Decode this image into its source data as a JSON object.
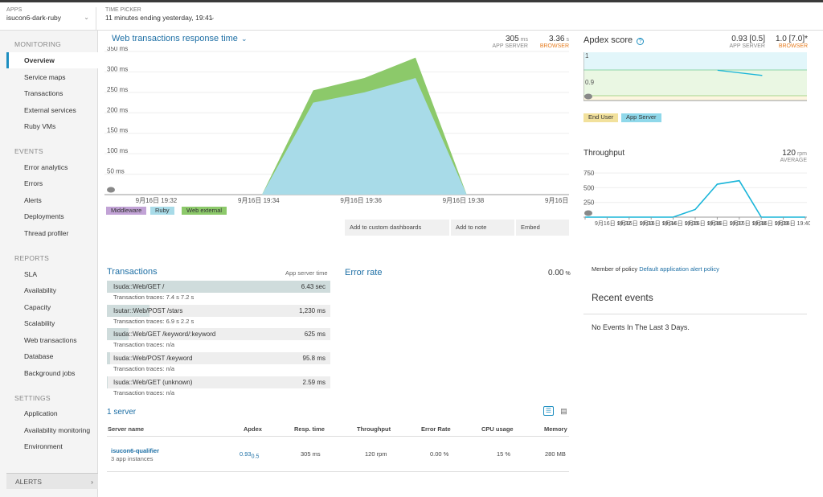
{
  "apps": {
    "label": "APPS",
    "value": "isucon6-dark-ruby"
  },
  "time_picker": {
    "label": "TIME PICKER",
    "value": "11 minutes ending yesterday, 19:41"
  },
  "sidebar": {
    "monitoring": "MONITORING",
    "monitoring_items": [
      "Overview",
      "Service maps",
      "Transactions",
      "External services",
      "Ruby VMs"
    ],
    "events": "EVENTS",
    "events_items": [
      "Error analytics",
      "Errors",
      "Alerts",
      "Deployments",
      "Thread profiler"
    ],
    "reports": "REPORTS",
    "reports_items": [
      "SLA",
      "Availability",
      "Capacity",
      "Scalability",
      "Web transactions",
      "Database",
      "Background jobs"
    ],
    "settings": "SETTINGS",
    "settings_items": [
      "Application",
      "Availability monitoring",
      "Environment"
    ],
    "alerts": "ALERTS"
  },
  "web_tx": {
    "title": "Web transactions response time",
    "app_server_value": "305",
    "app_server_unit": "ms",
    "app_server_label": "APP SERVER",
    "browser_value": "3.36",
    "browser_unit": "s",
    "browser_label": "BROWSER",
    "buttons": [
      "Add to custom dashboards",
      "Add to note",
      "Embed"
    ],
    "legend": [
      "Middleware",
      "Ruby",
      "Web external"
    ]
  },
  "apdex": {
    "title": "Apdex score",
    "app_server_value": "0.93 [0.5]",
    "app_server_label": "APP SERVER",
    "browser_value": "1.0 [7.0]*",
    "browser_label": "BROWSER",
    "legend": [
      "End User",
      "App Server"
    ]
  },
  "throughput": {
    "title": "Throughput",
    "value": "120",
    "unit": "rpm",
    "label": "AVERAGE"
  },
  "transactions": {
    "title": "Transactions",
    "header": "App server time",
    "trace_label": "Transaction traces:",
    "rows": [
      {
        "name": "Isuda::Web/GET /",
        "value": "6.43 sec",
        "traces": "7.4 s   7.2 s"
      },
      {
        "name": "Isutar::Web/POST /stars",
        "value": "1,230 ms",
        "traces": "6.9 s   2.2 s"
      },
      {
        "name": "Isuda::Web/GET /keyword/:keyword",
        "value": "625 ms",
        "traces": "n/a"
      },
      {
        "name": "Isuda::Web/POST /keyword",
        "value": "95.8 ms",
        "traces": "n/a"
      },
      {
        "name": "Isuda::Web/GET (unknown)",
        "value": "2.59 ms",
        "traces": "n/a"
      }
    ]
  },
  "error_rate": {
    "title": "Error rate",
    "value": "0.00",
    "unit": "%"
  },
  "policy": {
    "prefix": "Member of policy",
    "link": "Default application alert policy"
  },
  "recent_events": {
    "title": "Recent events",
    "empty": "No Events In The Last 3 Days."
  },
  "servers": {
    "title": "1 server",
    "headers": [
      "Server name",
      "Apdex",
      "Resp. time",
      "Throughput",
      "Error Rate",
      "CPU usage",
      "Memory"
    ],
    "row": {
      "name": "isucon6-qualifier",
      "instances": "3 app instances",
      "apdex": "0.93",
      "apdex_t": "0.5",
      "resp": "305 ms",
      "throughput": "120 rpm",
      "error": "0.00 %",
      "cpu": "15 %",
      "memory": "280 MB"
    }
  },
  "chart_data": [
    {
      "type": "area",
      "title": "Web transactions response time",
      "x": [
        "9月16日 19:31",
        "9月16日 19:32",
        "9月16日 19:33",
        "9月16日 19:34",
        "9月16日 19:35",
        "9月16日 19:36",
        "9月16日 19:37",
        "9月16日 19:38",
        "9月16日 19:39",
        "9月16日 19:40"
      ],
      "x_tick_labels": [
        "9月16日 19:32",
        "9月16日 19:34",
        "9月16日 19:36",
        "9月16日 19:38",
        "9月16日 19:40"
      ],
      "y_tick_labels": [
        "50 ms",
        "100 ms",
        "150 ms",
        "200 ms",
        "250 ms",
        "300 ms",
        "350 ms"
      ],
      "ylim": [
        0,
        350
      ],
      "series": [
        {
          "name": "Ruby",
          "color": "#a8dbe8",
          "values": [
            0,
            0,
            0,
            0,
            225,
            250,
            285,
            0,
            0,
            0
          ]
        },
        {
          "name": "Web external",
          "color": "#8cc96a",
          "values": [
            0,
            0,
            0,
            0,
            30,
            35,
            50,
            0,
            0,
            0
          ]
        },
        {
          "name": "Middleware",
          "color": "#c2a3d6",
          "values": [
            0,
            0,
            0,
            0,
            0,
            0,
            0,
            0,
            0,
            0
          ]
        }
      ]
    },
    {
      "type": "line",
      "title": "Apdex score",
      "y_tick_labels": [
        "1",
        "0.9"
      ],
      "series": [
        {
          "name": "App Server",
          "color": "#1ab5d9",
          "points": [
            [
              0.6,
              0.93
            ],
            [
              0.8,
              0.91
            ]
          ]
        }
      ]
    },
    {
      "type": "line",
      "title": "Throughput",
      "x_tick_labels": [
        "9月16日 19:32",
        "9月16日 19:33",
        "9月16日 19:34",
        "9月16日 19:35",
        "9月16日 19:36",
        "9月16日 19:37",
        "9月16日 19:38",
        "9月16日 19:39",
        "9月16日 19:40"
      ],
      "y_tick_labels": [
        "250",
        "500",
        "750"
      ],
      "ylim": [
        0,
        875
      ],
      "series": [
        {
          "name": "Throughput",
          "color": "#1ab5d9",
          "values": [
            0,
            0,
            0,
            0,
            0,
            130,
            560,
            620,
            0,
            0,
            0
          ]
        }
      ]
    }
  ]
}
